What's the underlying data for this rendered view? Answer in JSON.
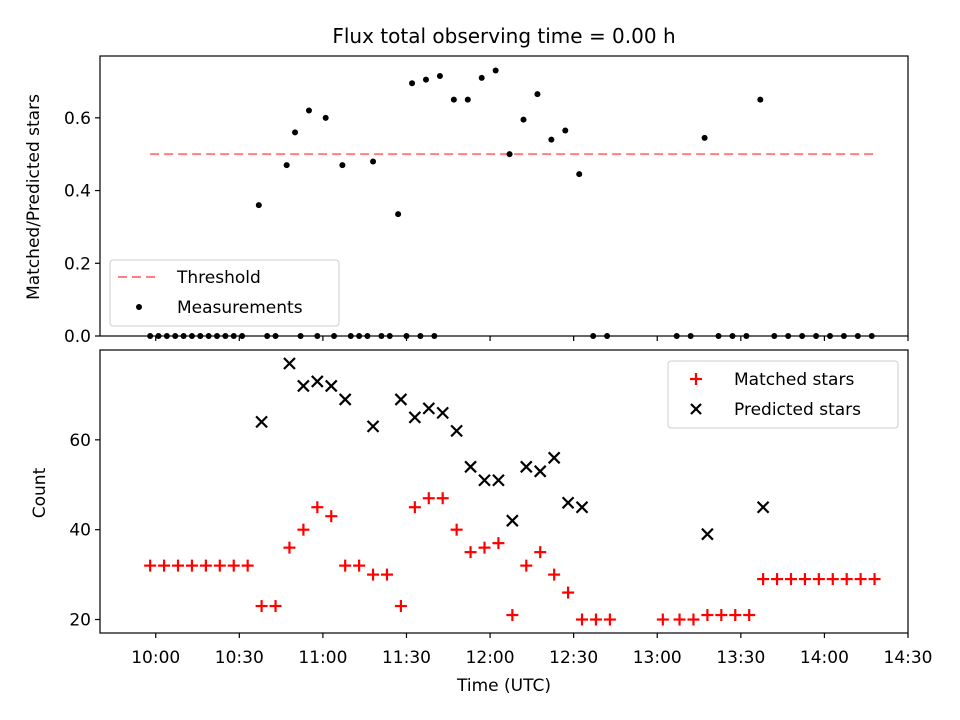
{
  "chart_data": {
    "title": "Flux total observing time = 0.00 h",
    "shared_x": {
      "xlabel": "Time (UTC)",
      "xlim": [
        "09:40",
        "14:30"
      ],
      "ticks": [
        "10:00",
        "10:30",
        "11:00",
        "11:30",
        "12:00",
        "12:30",
        "13:00",
        "13:30",
        "14:00",
        "14:30"
      ]
    },
    "panels": [
      {
        "type": "scatter",
        "ylabel": "Matched/Predicted stars",
        "ylim": [
          0,
          0.77
        ],
        "yticks": [
          0.0,
          0.2,
          0.4,
          0.6
        ],
        "legend_position": "lower-left",
        "threshold": {
          "name": "Threshold",
          "value": 0.5,
          "x_range": [
            "09:58",
            "14:18"
          ],
          "color": "#ff7f7f"
        },
        "series": [
          {
            "name": "Measurements",
            "color": "#000000",
            "marker": "dot",
            "points": [
              [
                "09:58",
                0
              ],
              [
                "10:01",
                0
              ],
              [
                "10:04",
                0
              ],
              [
                "10:07",
                0
              ],
              [
                "10:10",
                0
              ],
              [
                "10:13",
                0
              ],
              [
                "10:16",
                0
              ],
              [
                "10:19",
                0
              ],
              [
                "10:22",
                0
              ],
              [
                "10:25",
                0
              ],
              [
                "10:28",
                0
              ],
              [
                "10:31",
                0
              ],
              [
                "10:37",
                0.36
              ],
              [
                "10:40",
                0
              ],
              [
                "10:43",
                0
              ],
              [
                "10:47",
                0.47
              ],
              [
                "10:50",
                0.56
              ],
              [
                "10:52",
                0
              ],
              [
                "10:55",
                0.62
              ],
              [
                "10:58",
                0
              ],
              [
                "11:01",
                0.6
              ],
              [
                "11:04",
                0
              ],
              [
                "11:07",
                0.47
              ],
              [
                "11:10",
                0
              ],
              [
                "11:13",
                0
              ],
              [
                "11:16",
                0
              ],
              [
                "11:18",
                0.48
              ],
              [
                "11:21",
                0
              ],
              [
                "11:24",
                0
              ],
              [
                "11:27",
                0.335
              ],
              [
                "11:30",
                0
              ],
              [
                "11:32",
                0.695
              ],
              [
                "11:35",
                0
              ],
              [
                "11:37",
                0.705
              ],
              [
                "11:40",
                0
              ],
              [
                "11:42",
                0.715
              ],
              [
                "11:47",
                0.65
              ],
              [
                "11:52",
                0.65
              ],
              [
                "11:57",
                0.71
              ],
              [
                "12:02",
                0.73
              ],
              [
                "12:07",
                0.5
              ],
              [
                "12:12",
                0.595
              ],
              [
                "12:17",
                0.665
              ],
              [
                "12:22",
                0.54
              ],
              [
                "12:27",
                0.565
              ],
              [
                "12:32",
                0.445
              ],
              [
                "12:37",
                0
              ],
              [
                "12:42",
                0
              ],
              [
                "13:07",
                0
              ],
              [
                "13:12",
                0
              ],
              [
                "13:17",
                0.545
              ],
              [
                "13:22",
                0
              ],
              [
                "13:27",
                0
              ],
              [
                "13:32",
                0
              ],
              [
                "13:37",
                0.65
              ],
              [
                "13:42",
                0
              ],
              [
                "13:47",
                0
              ],
              [
                "13:52",
                0
              ],
              [
                "13:57",
                0
              ],
              [
                "14:02",
                0
              ],
              [
                "14:07",
                0
              ],
              [
                "14:12",
                0
              ],
              [
                "14:17",
                0
              ]
            ]
          }
        ]
      },
      {
        "type": "scatter",
        "ylabel": "Count",
        "ylim": [
          17,
          80
        ],
        "yticks": [
          20,
          40,
          60
        ],
        "legend_position": "upper-right",
        "series": [
          {
            "name": "Matched stars",
            "color": "#ff0000",
            "marker": "plus",
            "points": [
              [
                "09:58",
                32
              ],
              [
                "10:03",
                32
              ],
              [
                "10:08",
                32
              ],
              [
                "10:13",
                32
              ],
              [
                "10:18",
                32
              ],
              [
                "10:23",
                32
              ],
              [
                "10:28",
                32
              ],
              [
                "10:33",
                32
              ],
              [
                "10:38",
                23
              ],
              [
                "10:43",
                23
              ],
              [
                "10:48",
                36
              ],
              [
                "10:53",
                40
              ],
              [
                "10:58",
                45
              ],
              [
                "11:03",
                43
              ],
              [
                "11:08",
                32
              ],
              [
                "11:13",
                32
              ],
              [
                "11:18",
                30
              ],
              [
                "11:23",
                30
              ],
              [
                "11:28",
                23
              ],
              [
                "11:33",
                45
              ],
              [
                "11:38",
                47
              ],
              [
                "11:43",
                47
              ],
              [
                "11:48",
                40
              ],
              [
                "11:53",
                35
              ],
              [
                "11:58",
                36
              ],
              [
                "12:03",
                37
              ],
              [
                "12:08",
                21
              ],
              [
                "12:13",
                32
              ],
              [
                "12:18",
                35
              ],
              [
                "12:23",
                30
              ],
              [
                "12:28",
                26
              ],
              [
                "12:33",
                20
              ],
              [
                "12:38",
                20
              ],
              [
                "12:43",
                20
              ],
              [
                "13:02",
                20
              ],
              [
                "13:08",
                20
              ],
              [
                "13:13",
                20
              ],
              [
                "13:18",
                21
              ],
              [
                "13:23",
                21
              ],
              [
                "13:28",
                21
              ],
              [
                "13:33",
                21
              ],
              [
                "13:38",
                29
              ],
              [
                "13:43",
                29
              ],
              [
                "13:48",
                29
              ],
              [
                "13:53",
                29
              ],
              [
                "13:58",
                29
              ],
              [
                "14:03",
                29
              ],
              [
                "14:08",
                29
              ],
              [
                "14:13",
                29
              ],
              [
                "14:18",
                29
              ]
            ]
          },
          {
            "name": "Predicted stars",
            "color": "#000000",
            "marker": "x",
            "points": [
              [
                "10:38",
                64
              ],
              [
                "10:48",
                77
              ],
              [
                "10:53",
                72
              ],
              [
                "10:58",
                73
              ],
              [
                "11:03",
                72
              ],
              [
                "11:08",
                69
              ],
              [
                "11:18",
                63
              ],
              [
                "11:28",
                69
              ],
              [
                "11:33",
                65
              ],
              [
                "11:38",
                67
              ],
              [
                "11:43",
                66
              ],
              [
                "11:48",
                62
              ],
              [
                "11:53",
                54
              ],
              [
                "11:58",
                51
              ],
              [
                "12:03",
                51
              ],
              [
                "12:08",
                42
              ],
              [
                "12:13",
                54
              ],
              [
                "12:18",
                53
              ],
              [
                "12:23",
                56
              ],
              [
                "12:28",
                46
              ],
              [
                "12:33",
                45
              ],
              [
                "13:18",
                39
              ],
              [
                "13:38",
                45
              ]
            ]
          }
        ]
      }
    ]
  }
}
